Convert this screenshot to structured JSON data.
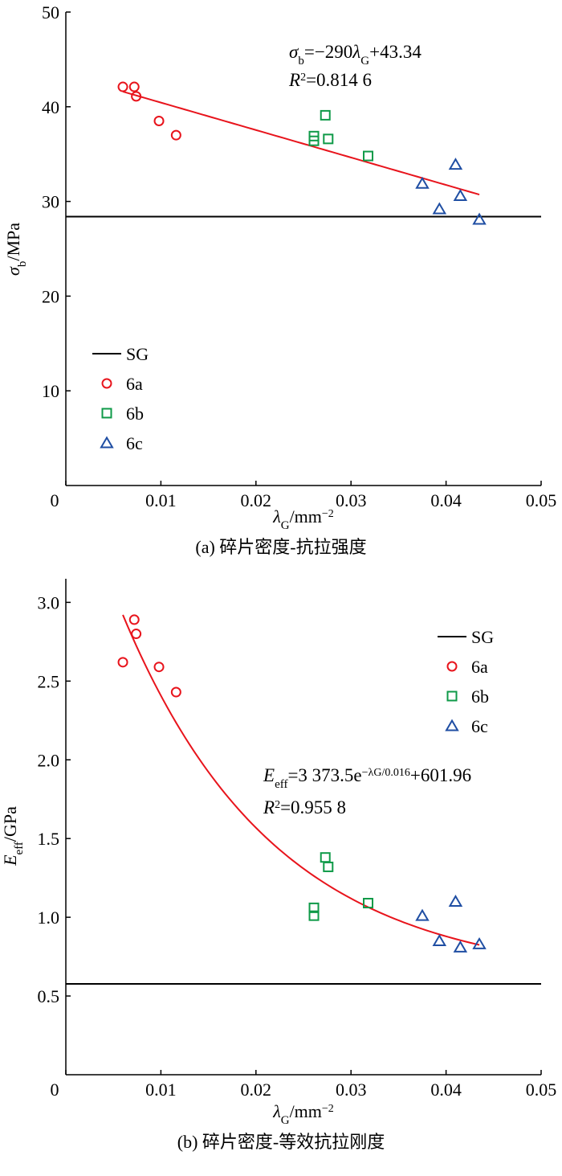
{
  "chart_data": [
    {
      "type": "scatter",
      "panel": "a",
      "caption": "(a)  碎片密度-抗拉强度",
      "xlabel_parts": [
        {
          "t": "λ",
          "i": true
        },
        {
          "t": "G",
          "sub": true
        },
        {
          "t": "/mm"
        },
        {
          "t": "−2",
          "sup": true
        }
      ],
      "ylabel_parts": [
        {
          "t": "σ",
          "i": true
        },
        {
          "t": "b",
          "sub": true
        },
        {
          "t": "/MPa"
        }
      ],
      "xlim": [
        0,
        0.05
      ],
      "ylim": [
        0,
        50
      ],
      "xticks": [
        0,
        0.01,
        0.02,
        0.03,
        0.04,
        0.05
      ],
      "xtick_labels": [
        "0",
        "0.01",
        "0.02",
        "0.03",
        "0.04",
        "0.05"
      ],
      "yticks": [
        10,
        20,
        30,
        40,
        50
      ],
      "ytick_labels": [
        "10",
        "20",
        "30",
        "40",
        "50"
      ],
      "legend_position": "lower-left",
      "legend": [
        "SG",
        "6a",
        "6b",
        "6c"
      ],
      "sg_value": 28.4,
      "series": [
        {
          "name": "6a",
          "marker": "circle",
          "color": "#e8141c",
          "x": [
            0.006,
            0.0072,
            0.0074,
            0.0098,
            0.0116
          ],
          "y": [
            42.1,
            42.1,
            41.1,
            38.5,
            37.0
          ]
        },
        {
          "name": "6b",
          "marker": "square",
          "color": "#0f9a48",
          "x": [
            0.0261,
            0.0261,
            0.0273,
            0.0276,
            0.0318
          ],
          "y": [
            36.9,
            36.4,
            39.1,
            36.6,
            34.8
          ]
        },
        {
          "name": "6c",
          "marker": "triangle",
          "color": "#1f4ea3",
          "x": [
            0.0375,
            0.0393,
            0.041,
            0.0415,
            0.0435
          ],
          "y": [
            31.9,
            29.2,
            33.9,
            30.6,
            28.1
          ]
        }
      ],
      "fit": {
        "kind": "linear",
        "slope": -290,
        "intercept": 43.34,
        "x_range": [
          0.006,
          0.0435
        ],
        "color": "#e8141c"
      },
      "equation_parts": [
        {
          "t": "σ",
          "i": true
        },
        {
          "t": "b",
          "sub": true
        },
        {
          "t": "=−290"
        },
        {
          "t": "λ",
          "i": true
        },
        {
          "t": "G",
          "sub": true
        },
        {
          "t": "+43.34"
        }
      ],
      "r2_parts": [
        {
          "t": "R",
          "i": true
        },
        {
          "t": "2",
          "sup": true
        },
        {
          "t": "=0.814 6"
        }
      ]
    },
    {
      "type": "scatter",
      "panel": "b",
      "caption": "(b)  碎片密度-等效抗拉刚度",
      "xlabel_parts": [
        {
          "t": "λ",
          "i": true
        },
        {
          "t": "G",
          "sub": true
        },
        {
          "t": "/mm"
        },
        {
          "t": "−2",
          "sup": true
        }
      ],
      "ylabel_parts": [
        {
          "t": "E",
          "i": true
        },
        {
          "t": "eff",
          "sub": true
        },
        {
          "t": "/GPa"
        }
      ],
      "xlim": [
        0,
        0.05
      ],
      "ylim": [
        0,
        3.15
      ],
      "xticks": [
        0,
        0.01,
        0.02,
        0.03,
        0.04,
        0.05
      ],
      "xtick_labels": [
        "0",
        "0.01",
        "0.02",
        "0.03",
        "0.04",
        "0.05"
      ],
      "yticks": [
        0.5,
        1.0,
        1.5,
        2.0,
        2.5,
        3.0
      ],
      "ytick_labels": [
        "0.5",
        "1.0",
        "1.5",
        "2.0",
        "2.5",
        "3.0"
      ],
      "legend_position": "upper-right",
      "legend": [
        "SG",
        "6a",
        "6b",
        "6c"
      ],
      "sg_value": 0.577,
      "series": [
        {
          "name": "6a",
          "marker": "circle",
          "color": "#e8141c",
          "x": [
            0.006,
            0.0072,
            0.0074,
            0.0098,
            0.0116
          ],
          "y": [
            2.62,
            2.89,
            2.8,
            2.59,
            2.43
          ]
        },
        {
          "name": "6b",
          "marker": "square",
          "color": "#0f9a48",
          "x": [
            0.0261,
            0.0261,
            0.0273,
            0.0276,
            0.0318
          ],
          "y": [
            1.06,
            1.01,
            1.38,
            1.32,
            1.09
          ]
        },
        {
          "name": "6c",
          "marker": "triangle",
          "color": "#1f4ea3",
          "x": [
            0.0375,
            0.0393,
            0.041,
            0.0415,
            0.0435
          ],
          "y": [
            1.01,
            0.85,
            1.1,
            0.81,
            0.83
          ]
        }
      ],
      "fit": {
        "kind": "exponential",
        "a": 3373.5,
        "t": 0.016,
        "c": 601.96,
        "unit_divisor": 1000,
        "x_range": [
          0.006,
          0.0435
        ],
        "color": "#e8141c"
      },
      "equation_parts": [
        {
          "t": "E",
          "i": true
        },
        {
          "t": "eff",
          "sub": true
        },
        {
          "t": "=3 373.5e"
        },
        {
          "t": "−",
          "sup": true
        },
        {
          "t": "λG/0.016",
          "sup": true
        },
        {
          "t": "+601.96"
        }
      ],
      "r2_parts": [
        {
          "t": "R",
          "i": true
        },
        {
          "t": "2",
          "sup": true
        },
        {
          "t": "=0.955 8"
        }
      ]
    }
  ]
}
